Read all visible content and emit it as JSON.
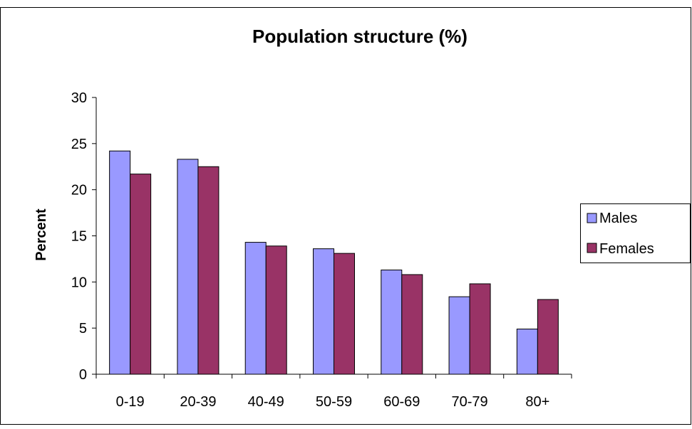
{
  "chart_data": {
    "type": "bar",
    "title": "Population structure (%)",
    "xlabel": "",
    "ylabel": "Percent",
    "categories": [
      "0-19",
      "20-39",
      "40-49",
      "50-59",
      "60-69",
      "70-79",
      "80+"
    ],
    "series": [
      {
        "name": "Males",
        "color": "#9999ff",
        "values": [
          24.2,
          23.3,
          14.3,
          13.6,
          11.3,
          8.4,
          4.9
        ]
      },
      {
        "name": "Females",
        "color": "#993366",
        "values": [
          21.7,
          22.5,
          13.9,
          13.1,
          10.8,
          9.8,
          8.1
        ]
      }
    ],
    "ylim": [
      0,
      30
    ],
    "yticks": [
      0,
      5,
      10,
      15,
      20,
      25,
      30
    ],
    "grid": false,
    "legend_position": "right"
  }
}
